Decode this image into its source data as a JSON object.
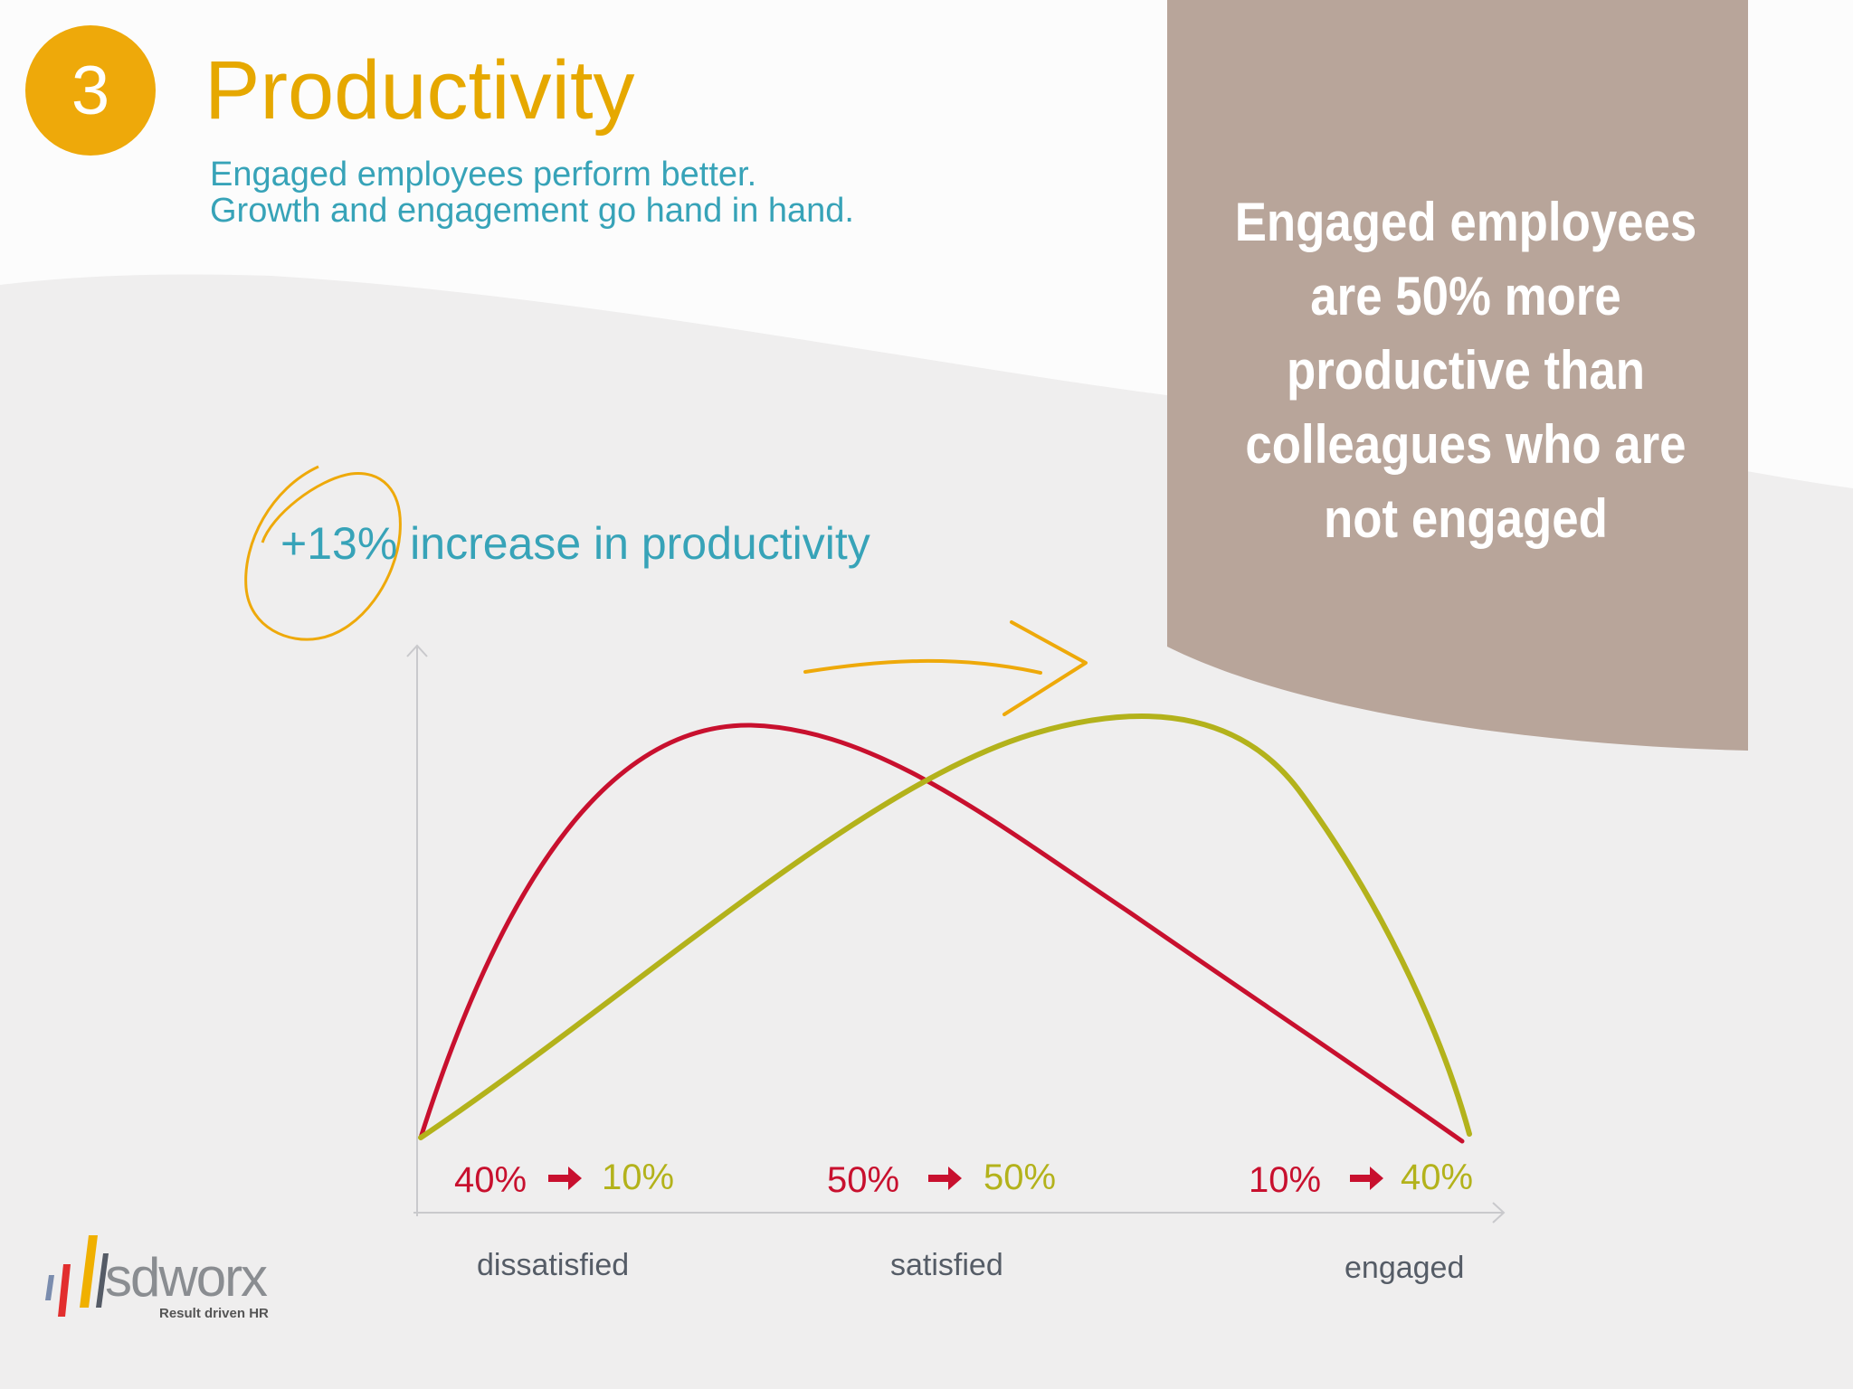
{
  "slide": {
    "number": "3",
    "title": "Productivity",
    "subtitle_lines": [
      "Engaged employees perform better.",
      "Growth and engagement go hand in hand."
    ],
    "callout_lines": [
      "Engaged employees",
      "are 50% more",
      "productive than",
      "colleagues who are",
      "not engaged"
    ],
    "increase_text": "+13% increase in productivity"
  },
  "chart": {
    "x_labels": [
      "dissatisfied",
      "satisfied",
      "engaged"
    ],
    "transitions": [
      {
        "from": "40%",
        "to": "10%"
      },
      {
        "from": "50%",
        "to": "50%"
      },
      {
        "from": "10%",
        "to": "40%"
      }
    ]
  },
  "logo": {
    "wordmark": "sdworx",
    "tagline": "Result driven HR"
  },
  "colors": {
    "accent": "#eea90a",
    "title": "#e6a800",
    "teal": "#37a3b8",
    "callout": "#b8a59a",
    "red": "#c8102e",
    "green": "#b3b21b"
  }
}
